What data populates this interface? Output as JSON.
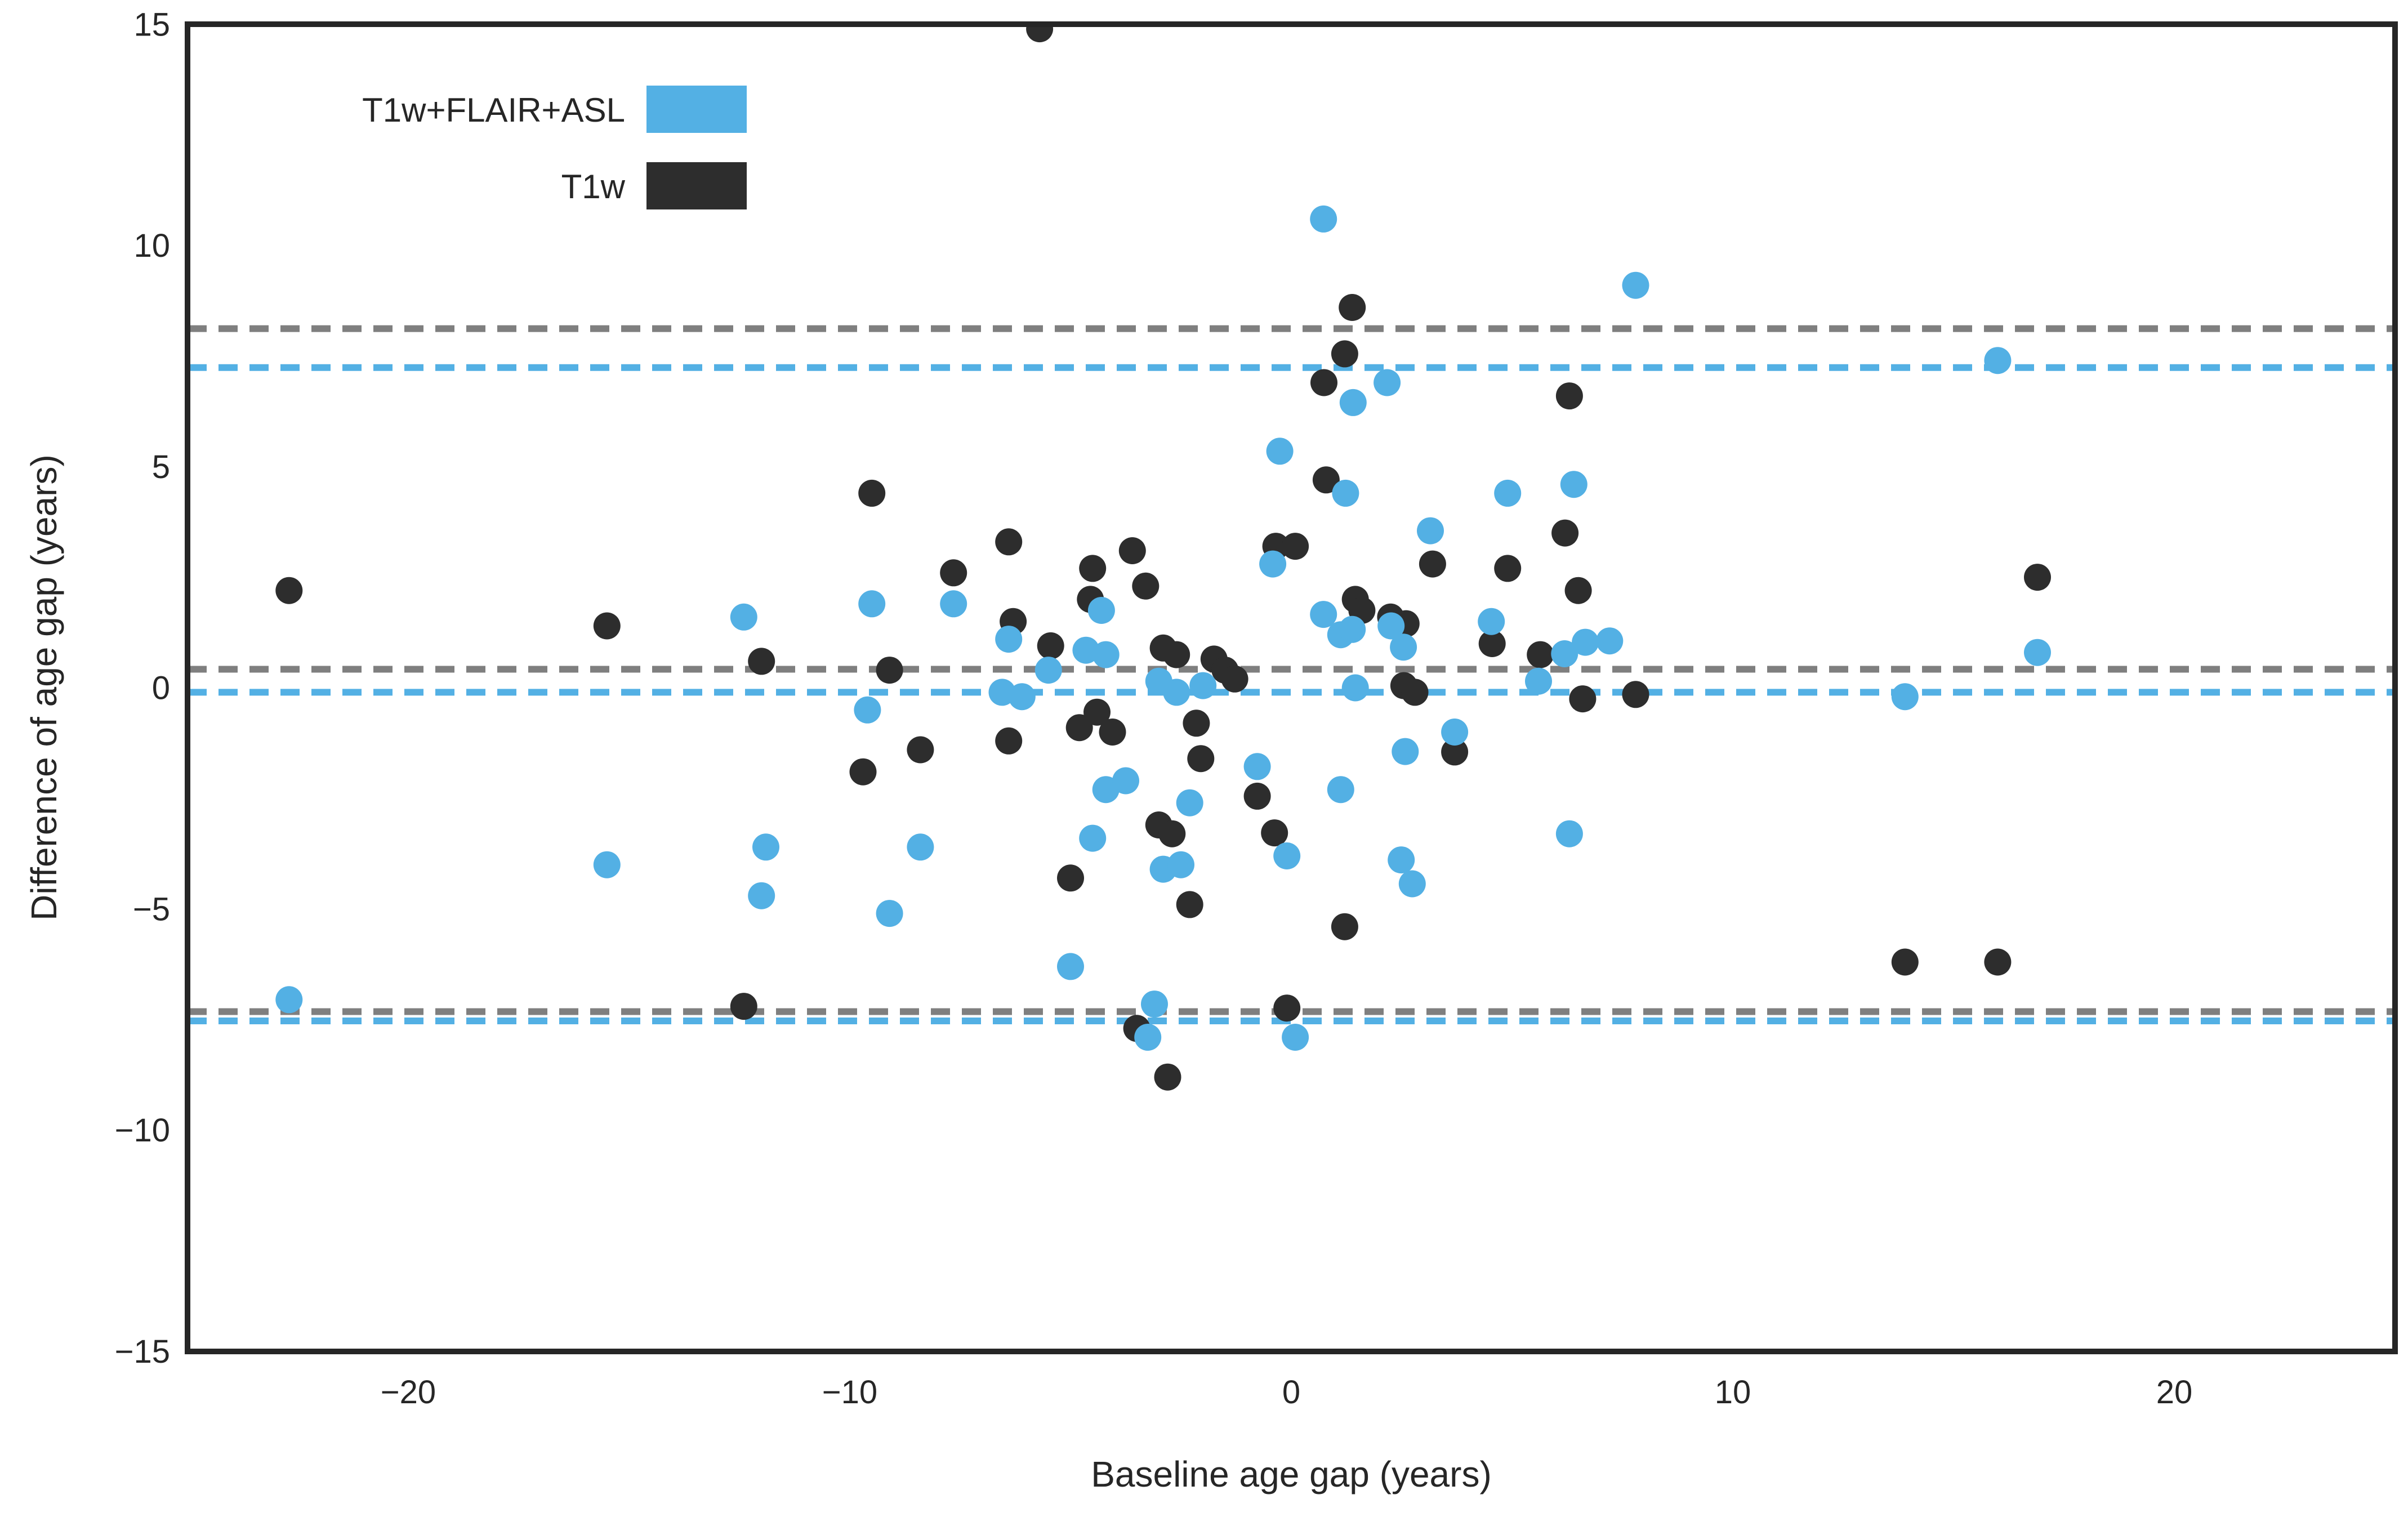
{
  "figure": {
    "background": "#ffffff",
    "axes_border_color": "#262626"
  },
  "legend": {
    "entries": [
      {
        "label": "T1w+FLAIR+ASL",
        "color": "#53b0e4"
      },
      {
        "label": "T1w",
        "color": "#2d2d2d"
      }
    ]
  },
  "chart_data": {
    "type": "scatter",
    "title": "",
    "xlabel": "Baseline age gap (years)",
    "ylabel": "Difference of age gap (years)",
    "xlim": [
      -25,
      25
    ],
    "ylim": [
      -15,
      15
    ],
    "xticks": [
      -20,
      -10,
      0,
      10,
      20
    ],
    "yticks": [
      15,
      10,
      5,
      0,
      -5,
      -10,
      -15
    ],
    "grid": false,
    "legend_position": "upper left",
    "marker": "circle",
    "series": [
      {
        "name": "T1w+FLAIR+ASL",
        "color": "#53b0e4",
        "points": [
          [
            -22.7,
            -7.05
          ],
          [
            -15.5,
            -4.0
          ],
          [
            -12.4,
            1.6
          ],
          [
            -11.9,
            -3.6
          ],
          [
            -12.0,
            -4.7
          ],
          [
            -9.5,
            1.9
          ],
          [
            -9.6,
            -0.5
          ],
          [
            -9.1,
            -5.1
          ],
          [
            -8.4,
            -3.6
          ],
          [
            -7.65,
            1.9
          ],
          [
            -6.4,
            1.1
          ],
          [
            -6.55,
            -0.1
          ],
          [
            -6.1,
            -0.2
          ],
          [
            -5.5,
            0.4
          ],
          [
            -4.3,
            1.75
          ],
          [
            -4.65,
            0.85
          ],
          [
            -4.2,
            0.75
          ],
          [
            -3.0,
            0.15
          ],
          [
            -2.6,
            -0.1
          ],
          [
            -2.0,
            0.05
          ],
          [
            -4.2,
            -2.3
          ],
          [
            -3.75,
            -2.1
          ],
          [
            -4.5,
            -3.4
          ],
          [
            -5.0,
            -6.3
          ],
          [
            -2.9,
            -4.1
          ],
          [
            -2.5,
            -4.0
          ],
          [
            -2.3,
            -2.6
          ],
          [
            -3.1,
            -7.15
          ],
          [
            -3.25,
            -7.9
          ],
          [
            0.73,
            10.6
          ],
          [
            1.4,
            6.45
          ],
          [
            2.17,
            6.9
          ],
          [
            -0.26,
            5.35
          ],
          [
            1.23,
            4.4
          ],
          [
            -0.42,
            2.8
          ],
          [
            0.73,
            1.66
          ],
          [
            1.12,
            1.2
          ],
          [
            1.38,
            1.32
          ],
          [
            2.26,
            1.4
          ],
          [
            2.54,
            0.92
          ],
          [
            1.45,
            0.0
          ],
          [
            -0.77,
            -1.78
          ],
          [
            1.12,
            -2.3
          ],
          [
            -0.1,
            -3.8
          ],
          [
            0.09,
            -7.9
          ],
          [
            2.58,
            -1.44
          ],
          [
            2.49,
            -3.89
          ],
          [
            2.74,
            -4.43
          ],
          [
            3.15,
            3.55
          ],
          [
            3.7,
            -1.0
          ],
          [
            4.53,
            1.5
          ],
          [
            4.9,
            4.4
          ],
          [
            6.4,
            4.6
          ],
          [
            6.19,
            0.77
          ],
          [
            6.66,
            1.03
          ],
          [
            7.21,
            1.06
          ],
          [
            5.6,
            0.15
          ],
          [
            6.3,
            -3.3
          ],
          [
            7.8,
            9.1
          ],
          [
            13.9,
            -0.2
          ],
          [
            16.0,
            7.4
          ],
          [
            16.9,
            0.8
          ]
        ]
      },
      {
        "name": "T1w",
        "color": "#2d2d2d",
        "points": [
          [
            -22.7,
            2.2
          ],
          [
            -15.5,
            1.4
          ],
          [
            -12.0,
            0.6
          ],
          [
            -12.4,
            -7.2
          ],
          [
            -9.5,
            4.4
          ],
          [
            -9.7,
            -1.9
          ],
          [
            -9.1,
            0.4
          ],
          [
            -8.4,
            -1.4
          ],
          [
            -7.65,
            2.6
          ],
          [
            -6.4,
            3.3
          ],
          [
            -6.3,
            1.5
          ],
          [
            -6.4,
            -1.2
          ],
          [
            -5.45,
            0.95
          ],
          [
            -5.0,
            -4.3
          ],
          [
            -4.5,
            2.7
          ],
          [
            -4.55,
            2.0
          ],
          [
            -3.6,
            3.1
          ],
          [
            -3.3,
            2.3
          ],
          [
            -2.9,
            0.9
          ],
          [
            -2.6,
            0.75
          ],
          [
            -4.8,
            -0.9
          ],
          [
            -4.4,
            -0.55
          ],
          [
            -4.05,
            -1.0
          ],
          [
            -2.15,
            -0.8
          ],
          [
            -2.05,
            -1.6
          ],
          [
            -1.75,
            0.65
          ],
          [
            -1.5,
            0.4
          ],
          [
            -1.28,
            0.2
          ],
          [
            -3.0,
            -3.1
          ],
          [
            -2.7,
            -3.3
          ],
          [
            -2.3,
            -4.9
          ],
          [
            -0.77,
            -2.45
          ],
          [
            -0.38,
            -3.28
          ],
          [
            -3.5,
            -7.7
          ],
          [
            -2.8,
            -8.8
          ],
          [
            -0.1,
            -7.24
          ],
          [
            -5.7,
            14.9
          ],
          [
            -0.35,
            3.2
          ],
          [
            0.09,
            3.2
          ],
          [
            0.79,
            4.7
          ],
          [
            1.38,
            8.6
          ],
          [
            1.21,
            7.55
          ],
          [
            0.74,
            6.9
          ],
          [
            1.45,
            2.0
          ],
          [
            1.6,
            1.75
          ],
          [
            2.25,
            1.6
          ],
          [
            2.6,
            1.45
          ],
          [
            2.55,
            0.05
          ],
          [
            2.8,
            -0.1
          ],
          [
            1.21,
            -5.4
          ],
          [
            3.2,
            2.8
          ],
          [
            3.7,
            -1.45
          ],
          [
            4.9,
            2.7
          ],
          [
            4.55,
            1.0
          ],
          [
            5.64,
            0.75
          ],
          [
            6.3,
            6.6
          ],
          [
            6.2,
            3.5
          ],
          [
            6.5,
            2.2
          ],
          [
            6.6,
            -0.25
          ],
          [
            7.8,
            -0.15
          ],
          [
            13.9,
            -6.2
          ],
          [
            16.0,
            -6.2
          ],
          [
            16.9,
            2.5
          ]
        ]
      }
    ],
    "reference_lines": [
      {
        "series": "T1w",
        "color": "#7f7f7f",
        "style": "dashed",
        "mean": 0.42,
        "upper_loa": 8.12,
        "lower_loa": -7.32
      },
      {
        "series": "T1w+FLAIR+ASL",
        "color": "#53b0e4",
        "style": "dashed",
        "mean": -0.1,
        "upper_loa": 7.24,
        "lower_loa": -7.53
      }
    ]
  }
}
